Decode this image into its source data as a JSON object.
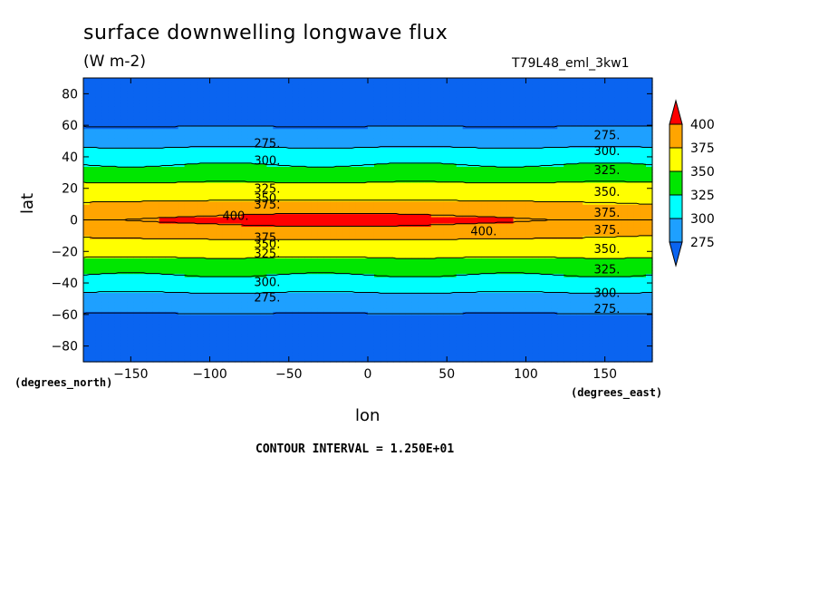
{
  "title": "surface downwelling longwave flux",
  "units": "(W m-2)",
  "run_label": "T79L48_eml_3kw1",
  "lat_units": "(degrees_north)",
  "lon_units": "(degrees_east)",
  "contour_interval_text": "CONTOUR INTERVAL = 1.250E+01",
  "chart_data": {
    "type": "heatmap",
    "title": "surface downwelling longwave flux",
    "subtitle": "(W m-2)",
    "xlabel": "lon",
    "ylabel": "lat",
    "xlim": [
      -180,
      180
    ],
    "ylim": [
      -90,
      90
    ],
    "x_ticks": [
      -150,
      -100,
      -50,
      0,
      50,
      100,
      150
    ],
    "y_ticks": [
      80,
      60,
      40,
      20,
      0,
      -20,
      -40,
      -60,
      -80
    ],
    "colorbar": {
      "levels": [
        275,
        300,
        325,
        350,
        375,
        400
      ],
      "colors": [
        "#0a64f0",
        "#1ea0ff",
        "#00ffff",
        "#00e600",
        "#ffff00",
        "#ffa500",
        "#ff0000"
      ]
    },
    "contour_labels": [
      {
        "value": "275.",
        "lon": -72,
        "lat": 49
      },
      {
        "value": "300.",
        "lon": -72,
        "lat": 38
      },
      {
        "value": "325.",
        "lon": -72,
        "lat": 20
      },
      {
        "value": "350.",
        "lon": -72,
        "lat": 14
      },
      {
        "value": "375.",
        "lon": -72,
        "lat": 10
      },
      {
        "value": "400.",
        "lon": -92,
        "lat": 3
      },
      {
        "value": "400.",
        "lon": 65,
        "lat": -7
      },
      {
        "value": "375.",
        "lon": -72,
        "lat": -11
      },
      {
        "value": "350.",
        "lon": -72,
        "lat": -15
      },
      {
        "value": "325.",
        "lon": -72,
        "lat": -21
      },
      {
        "value": "300.",
        "lon": -72,
        "lat": -39
      },
      {
        "value": "275.",
        "lon": -72,
        "lat": -49
      },
      {
        "value": "275.",
        "lon": 143,
        "lat": 54
      },
      {
        "value": "300.",
        "lon": 143,
        "lat": 44
      },
      {
        "value": "325.",
        "lon": 143,
        "lat": 32
      },
      {
        "value": "350.",
        "lon": 143,
        "lat": 18
      },
      {
        "value": "375.",
        "lon": 143,
        "lat": 5
      },
      {
        "value": "375.",
        "lon": 143,
        "lat": -6
      },
      {
        "value": "350.",
        "lon": 143,
        "lat": -18
      },
      {
        "value": "325.",
        "lon": 143,
        "lat": -31
      },
      {
        "value": "300.",
        "lon": 143,
        "lat": -46
      },
      {
        "value": "275.",
        "lon": 143,
        "lat": -56
      }
    ]
  }
}
